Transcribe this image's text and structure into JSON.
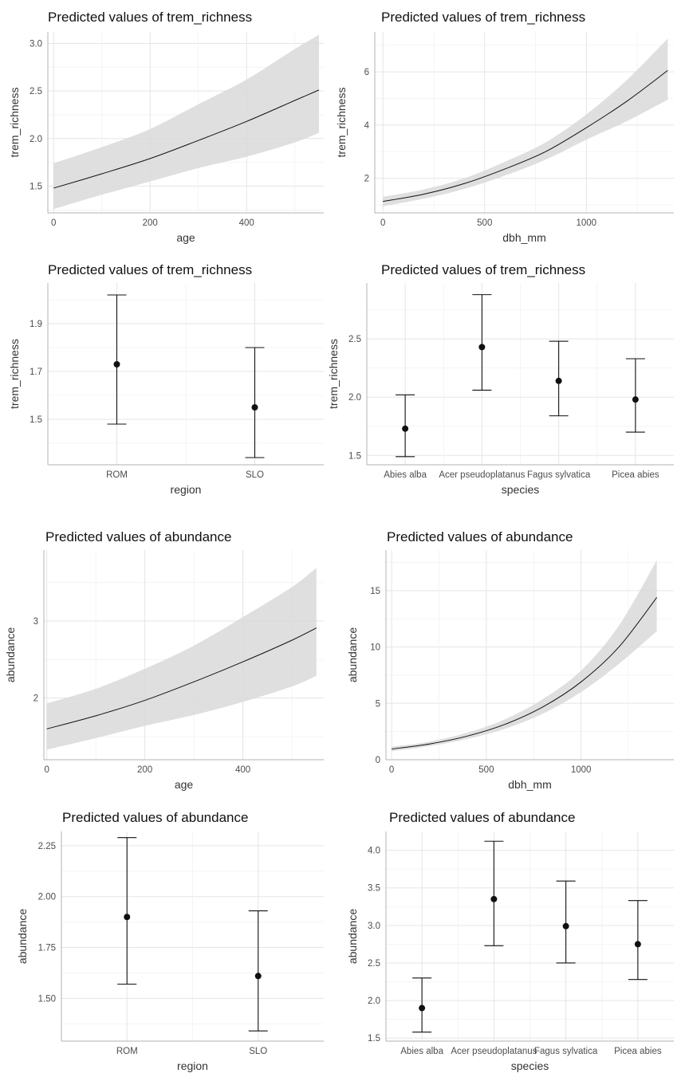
{
  "chart_data": [
    {
      "type": "line",
      "title": "Predicted values of trem_richness",
      "xlabel": "age",
      "ylabel": "trem_richness",
      "xlim": [
        -12,
        560
      ],
      "ylim": [
        1.22,
        3.12
      ],
      "xticks": [
        0,
        200,
        400
      ],
      "xtick_labels": [
        "0",
        "200",
        "400"
      ],
      "yticks": [
        1.5,
        2.0,
        2.5,
        3.0
      ],
      "ytick_labels": [
        "1.5",
        "2.0",
        "2.5",
        "3.0"
      ],
      "grid": true,
      "x": [
        0,
        100,
        200,
        300,
        400,
        500,
        550
      ],
      "y": [
        1.48,
        1.63,
        1.79,
        1.98,
        2.18,
        2.4,
        2.51
      ],
      "lower": [
        1.26,
        1.41,
        1.55,
        1.69,
        1.81,
        1.96,
        2.06
      ],
      "upper": [
        1.74,
        1.91,
        2.1,
        2.36,
        2.62,
        2.94,
        3.09
      ]
    },
    {
      "type": "line",
      "title": "Predicted values of trem_richness",
      "xlabel": "dbh_mm",
      "ylabel": "trem_richness",
      "xlim": [
        -40,
        1430
      ],
      "ylim": [
        0.7,
        7.5
      ],
      "xticks": [
        0,
        500,
        1000
      ],
      "xtick_labels": [
        "0",
        "500",
        "1000"
      ],
      "yticks": [
        2,
        4,
        6
      ],
      "ytick_labels": [
        "2",
        "4",
        "6"
      ],
      "grid": true,
      "x": [
        0,
        200,
        400,
        600,
        800,
        1000,
        1200,
        1400
      ],
      "y": [
        1.13,
        1.4,
        1.8,
        2.35,
        3.0,
        3.9,
        4.9,
        6.05
      ],
      "lower": [
        0.95,
        1.23,
        1.6,
        2.1,
        2.7,
        3.45,
        4.15,
        4.95
      ],
      "upper": [
        1.3,
        1.58,
        2.0,
        2.62,
        3.35,
        4.4,
        5.7,
        7.25
      ]
    },
    {
      "type": "scatter",
      "title": "Predicted values of trem_richness",
      "xlabel": "region",
      "ylabel": "trem_richness",
      "categories": [
        "ROM",
        "SLO"
      ],
      "ylim": [
        1.31,
        2.07
      ],
      "yticks": [
        1.5,
        1.7,
        1.9
      ],
      "ytick_labels": [
        "1.5",
        "1.7",
        "1.9"
      ],
      "grid": true,
      "values": [
        1.73,
        1.55
      ],
      "lower": [
        1.48,
        1.34
      ],
      "upper": [
        2.02,
        1.8
      ]
    },
    {
      "type": "scatter",
      "title": "Predicted values of trem_richness",
      "xlabel": "species",
      "ylabel": "trem_richness",
      "categories": [
        "Abies alba",
        "Acer pseudoplatanus",
        "Fagus sylvatica",
        "Picea abies"
      ],
      "ylim": [
        1.42,
        2.98
      ],
      "yticks": [
        1.5,
        2.0,
        2.5
      ],
      "ytick_labels": [
        "1.5",
        "2.0",
        "2.5"
      ],
      "grid": true,
      "values": [
        1.73,
        2.43,
        2.14,
        1.98
      ],
      "lower": [
        1.49,
        2.06,
        1.84,
        1.7
      ],
      "upper": [
        2.02,
        2.88,
        2.48,
        2.33
      ]
    },
    {
      "type": "line",
      "title": "Predicted values of abundance",
      "xlabel": "age",
      "ylabel": "abundance",
      "xlim": [
        -6,
        565
      ],
      "ylim": [
        1.2,
        3.92
      ],
      "xticks": [
        0,
        200,
        400
      ],
      "xtick_labels": [
        "0",
        "200",
        "400"
      ],
      "yticks": [
        2,
        3
      ],
      "ytick_labels": [
        "2",
        "3"
      ],
      "grid": true,
      "x": [
        0,
        100,
        200,
        300,
        400,
        500,
        550
      ],
      "y": [
        1.6,
        1.77,
        1.97,
        2.21,
        2.47,
        2.75,
        2.91
      ],
      "lower": [
        1.33,
        1.48,
        1.64,
        1.78,
        1.95,
        2.15,
        2.29
      ],
      "upper": [
        1.93,
        2.12,
        2.38,
        2.68,
        3.05,
        3.44,
        3.69
      ]
    },
    {
      "type": "line",
      "title": "Predicted values of abundance",
      "xlabel": "dbh_mm",
      "ylabel": "abundance",
      "xlim": [
        -30,
        1490
      ],
      "ylim": [
        0,
        18.6
      ],
      "xticks": [
        0,
        500,
        1000
      ],
      "xtick_labels": [
        "0",
        "500",
        "1000"
      ],
      "yticks": [
        0,
        5,
        10,
        15
      ],
      "ytick_labels": [
        "0",
        "5",
        "10",
        "15"
      ],
      "grid": true,
      "x": [
        0,
        200,
        400,
        600,
        800,
        1000,
        1200,
        1400
      ],
      "y": [
        0.95,
        1.4,
        2.1,
        3.15,
        4.7,
        6.9,
        10.0,
        14.4
      ],
      "lower": [
        0.75,
        1.2,
        1.85,
        2.75,
        4.1,
        6.0,
        8.5,
        11.4
      ],
      "upper": [
        1.15,
        1.6,
        2.4,
        3.6,
        5.4,
        7.9,
        11.9,
        17.7
      ]
    },
    {
      "type": "scatter",
      "title": "Predicted values of abundance",
      "xlabel": "region",
      "ylabel": "abundance",
      "categories": [
        "ROM",
        "SLO"
      ],
      "ylim": [
        1.29,
        2.32
      ],
      "yticks": [
        1.5,
        1.75,
        2.0,
        2.25
      ],
      "ytick_labels": [
        "1.50",
        "1.75",
        "2.00",
        "2.25"
      ],
      "grid": true,
      "values": [
        1.9,
        1.61
      ],
      "lower": [
        1.57,
        1.34
      ],
      "upper": [
        2.29,
        1.93
      ]
    },
    {
      "type": "scatter",
      "title": "Predicted values of abundance",
      "xlabel": "species",
      "ylabel": "abundance",
      "categories": [
        "Abies alba",
        "Acer pseudoplatanus",
        "Fagus sylvatica",
        "Picea abies"
      ],
      "ylim": [
        1.46,
        4.25
      ],
      "yticks": [
        1.5,
        2.0,
        2.5,
        3.0,
        3.5,
        4.0
      ],
      "ytick_labels": [
        "1.5",
        "2.0",
        "2.5",
        "3.0",
        "3.5",
        "4.0"
      ],
      "grid": true,
      "values": [
        1.9,
        3.35,
        2.99,
        2.75
      ],
      "lower": [
        1.58,
        2.73,
        2.5,
        2.28
      ],
      "upper": [
        2.3,
        4.12,
        3.59,
        3.33
      ]
    }
  ]
}
